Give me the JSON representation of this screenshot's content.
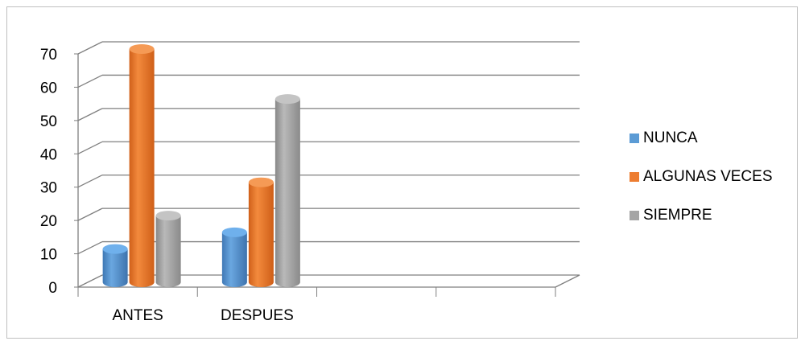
{
  "chart_data": {
    "type": "bar",
    "categories": [
      "ANTES",
      "DESPUES"
    ],
    "series": [
      {
        "name": "NUNCA",
        "values": [
          10,
          15
        ],
        "color": "#5b9bd5"
      },
      {
        "name": "ALGUNAS VECES",
        "values": [
          70,
          30
        ],
        "color": "#ed7d31"
      },
      {
        "name": "SIEMPRE",
        "values": [
          20,
          55
        ],
        "color": "#a5a5a5"
      }
    ],
    "yticks": [
      "0",
      "10",
      "20",
      "30",
      "40",
      "50",
      "60",
      "70"
    ],
    "ylim": [
      0,
      70
    ],
    "legend_position": "right",
    "grid": true,
    "style": "3d-cylinder"
  }
}
